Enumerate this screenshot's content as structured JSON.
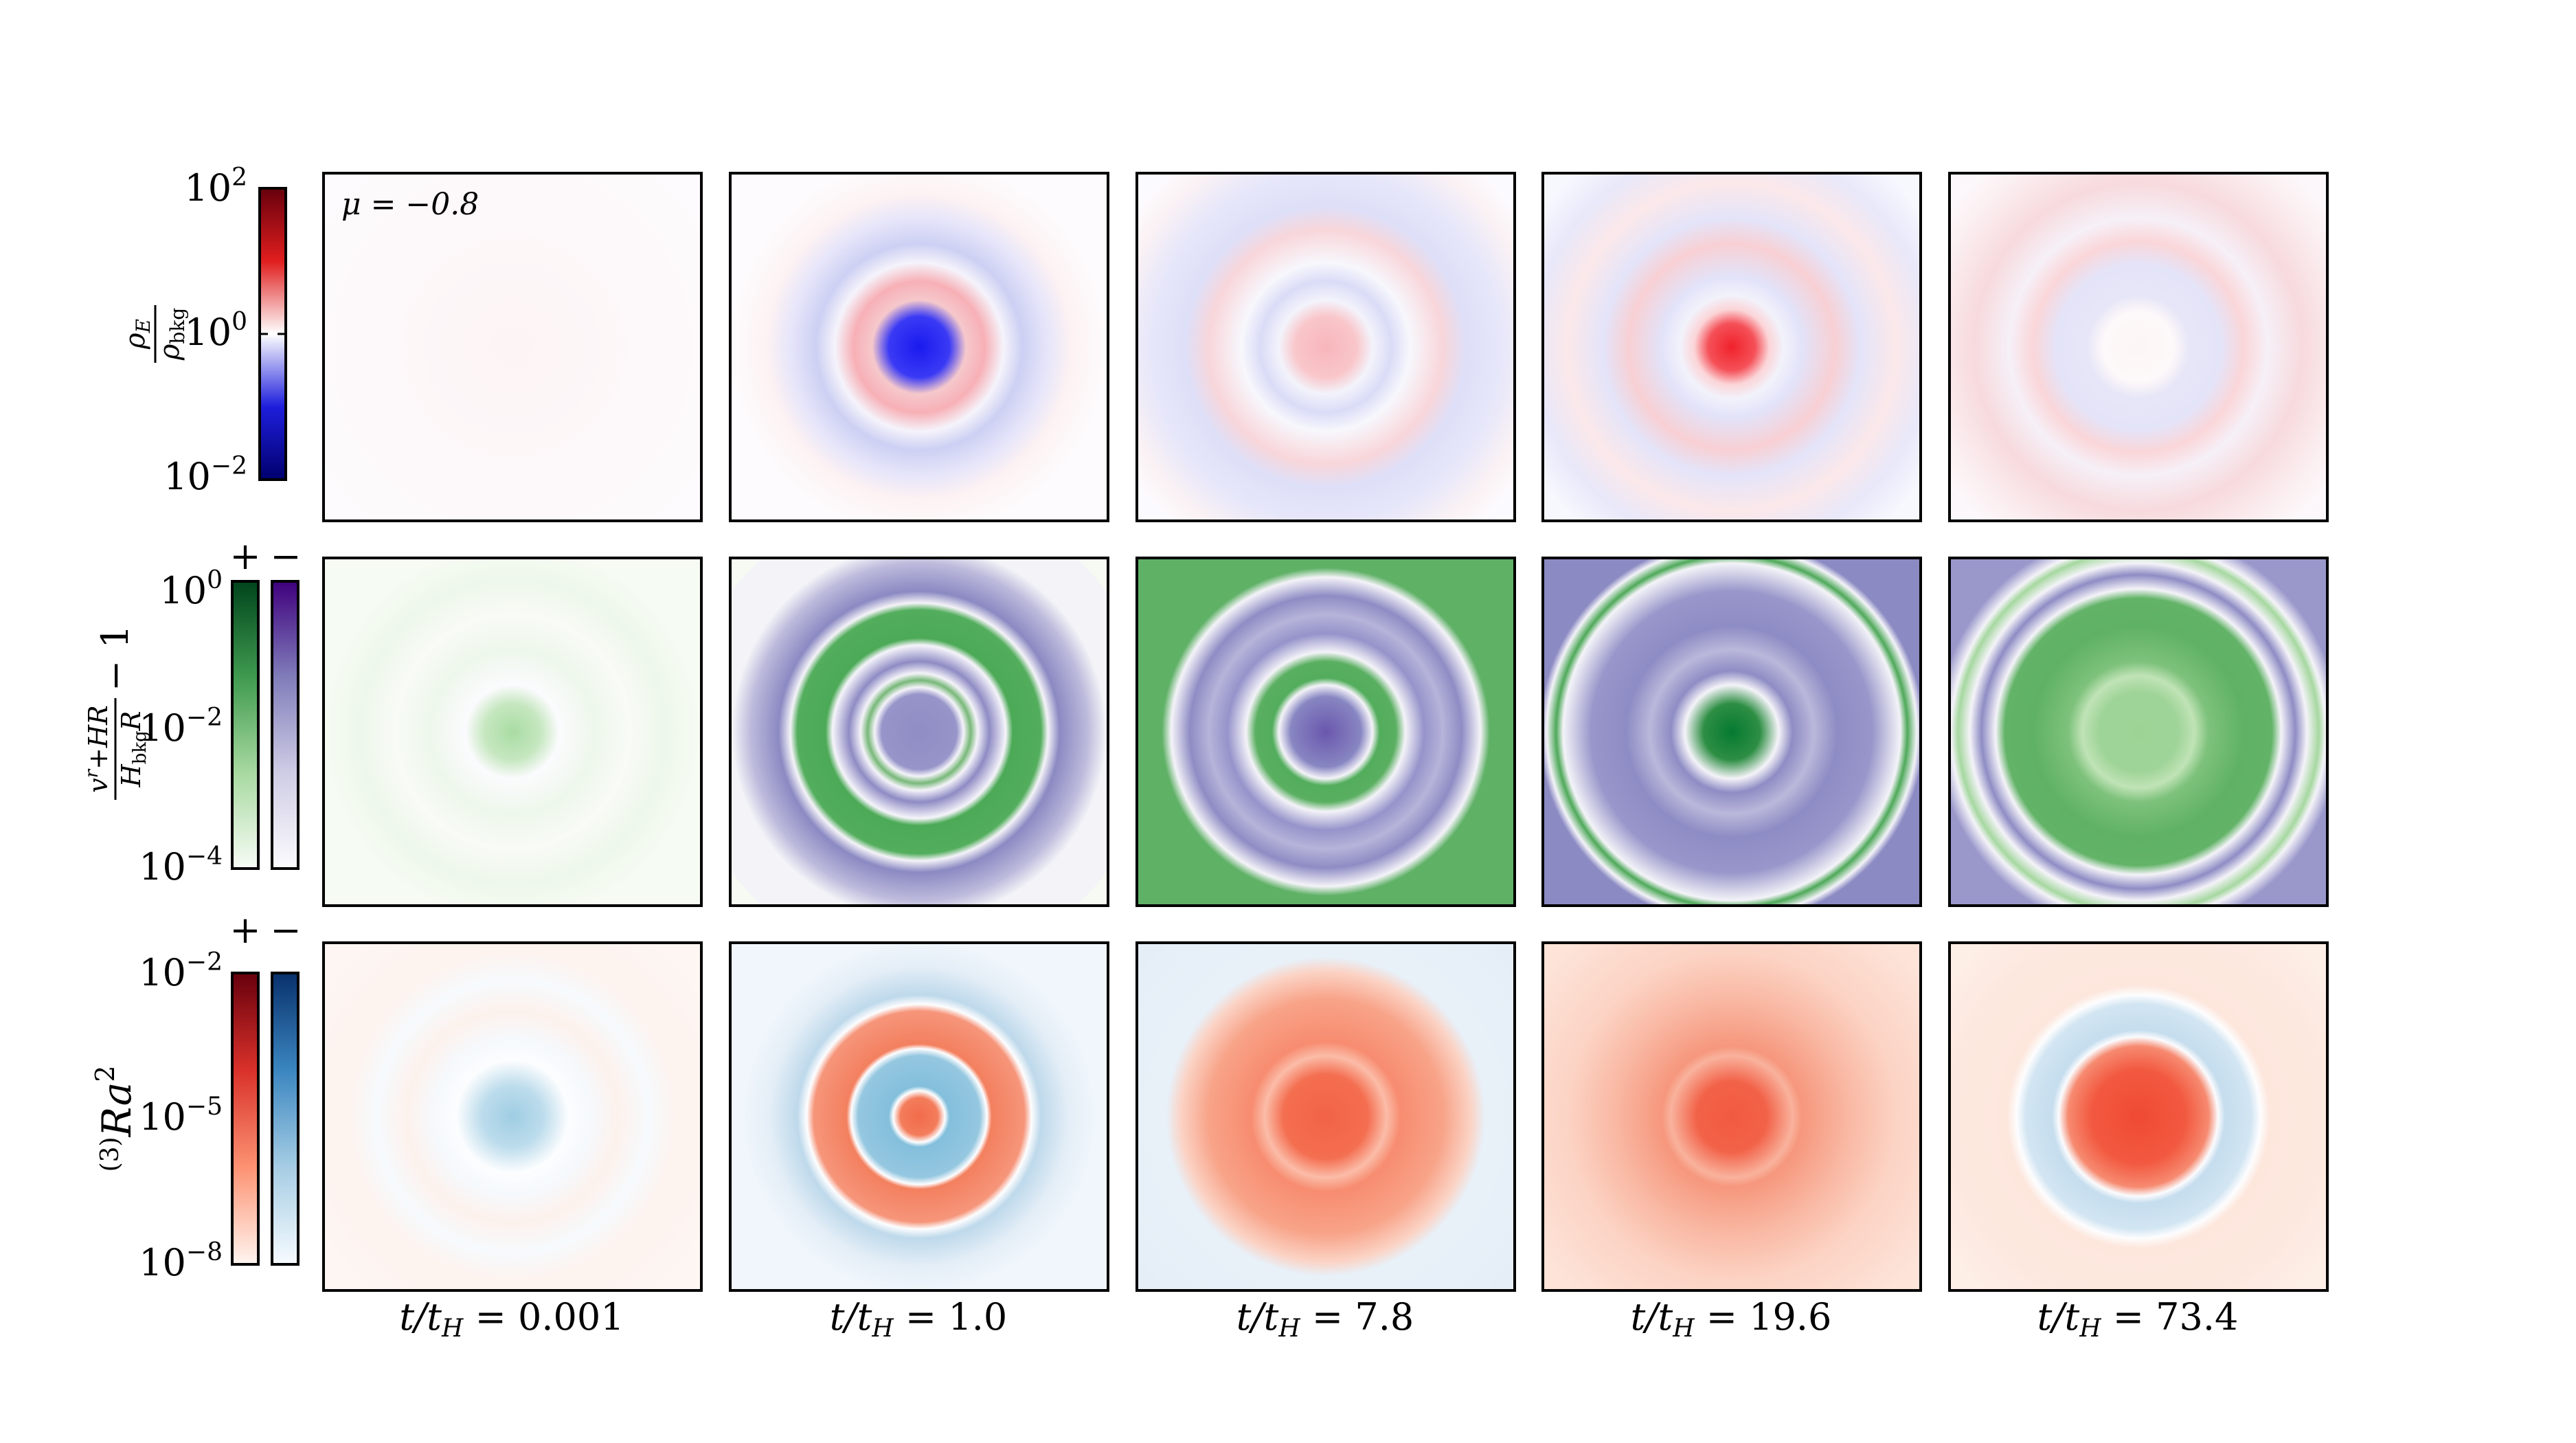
{
  "annotation": "μ = −0.8",
  "row_labels": {
    "density": {
      "numerator": "ρ",
      "numerator_sub": "E",
      "denominator": "ρ",
      "denominator_sub": "bkg"
    },
    "velocity": {
      "numerator": "v",
      "numerator_sup": "r",
      "numerator_rest": "+HR",
      "denominator": "H",
      "denominator_sub": "bkg",
      "denominator_rest": "R",
      "suffix": "− 1"
    },
    "curvature": {
      "prefix": "(3)",
      "main": "Ra",
      "sup": "2"
    }
  },
  "colorbars": {
    "density": {
      "ticks": [
        {
          "base": "10",
          "exp": "2"
        },
        {
          "base": "10",
          "exp": "0"
        },
        {
          "base": "10",
          "exp": "−2"
        }
      ],
      "colors": [
        "#67000d",
        "#e01e1e",
        "#ffffff",
        "#1e1edc",
        "#00006e"
      ]
    },
    "velocity": {
      "plus": "+",
      "minus": "−",
      "ticks": [
        {
          "base": "10",
          "exp": "0"
        },
        {
          "base": "10",
          "exp": "−2"
        },
        {
          "base": "10",
          "exp": "−4"
        }
      ],
      "colors_pos": [
        "#00441b",
        "#3f9a4f",
        "#a8d9a0",
        "#f7fcf5"
      ],
      "colors_neg": [
        "#3f007d",
        "#807dba",
        "#cfcde5",
        "#fcfbfd"
      ]
    },
    "curvature": {
      "plus": "+",
      "minus": "−",
      "ticks": [
        {
          "base": "10",
          "exp": "−2"
        },
        {
          "base": "10",
          "exp": "−5"
        },
        {
          "base": "10",
          "exp": "−8"
        }
      ],
      "colors_pos": [
        "#67000d",
        "#d9312a",
        "#fc9272",
        "#fff5f0"
      ],
      "colors_neg": [
        "#08306b",
        "#3b86c0",
        "#a6cde4",
        "#f7fbff"
      ]
    }
  },
  "time_labels": [
    {
      "text": "t/t",
      "sub": "H",
      "value": " = 0.001"
    },
    {
      "text": "t/t",
      "sub": "H",
      "value": " = 1.0"
    },
    {
      "text": "t/t",
      "sub": "H",
      "value": " = 7.8"
    },
    {
      "text": "t/t",
      "sub": "H",
      "value": " = 19.6"
    },
    {
      "text": "t/t",
      "sub": "H",
      "value": " = 73.4"
    }
  ],
  "panels": [
    [
      {
        "bg": "#fdfbfd",
        "stops": [
          [
            0,
            "#fdf4f5"
          ],
          [
            1,
            "#fdfbfd"
          ]
        ]
      },
      {
        "bg": "#fdfbfd",
        "stops": [
          [
            0,
            "#1a1aef"
          ],
          [
            0.13,
            "#3a3af5"
          ],
          [
            0.2,
            "#f5c8cc"
          ],
          [
            0.28,
            "#f7b0b6"
          ],
          [
            0.36,
            "#f5f3fb"
          ],
          [
            0.44,
            "#cdd0f3"
          ],
          [
            0.55,
            "#e6e5fa"
          ],
          [
            0.65,
            "#fdf2f3"
          ],
          [
            0.8,
            "#fdfbfd"
          ]
        ]
      },
      {
        "bg": "#fbfbff",
        "stops": [
          [
            0,
            "#f7b6bb"
          ],
          [
            0.13,
            "#f9c6ca"
          ],
          [
            0.2,
            "#f3f3fb"
          ],
          [
            0.28,
            "#dadcf7"
          ],
          [
            0.36,
            "#f7f7fc"
          ],
          [
            0.5,
            "#f8d6da"
          ],
          [
            0.6,
            "#dedff8"
          ],
          [
            0.75,
            "#e7e7fa"
          ],
          [
            0.9,
            "#fbf2f4"
          ],
          [
            1,
            "#fcfbfe"
          ]
        ]
      },
      {
        "bg": "#f7f7fe",
        "stops": [
          [
            0,
            "#f0222b"
          ],
          [
            0.1,
            "#f55058"
          ],
          [
            0.16,
            "#fbd4d7"
          ],
          [
            0.22,
            "#f2f2fb"
          ],
          [
            0.3,
            "#e2e3f9"
          ],
          [
            0.44,
            "#f8d0d4"
          ],
          [
            0.55,
            "#e4e4f9"
          ],
          [
            0.7,
            "#fbe8ea"
          ],
          [
            0.85,
            "#e8e8fa"
          ],
          [
            1,
            "#f8f8fe"
          ]
        ]
      },
      {
        "bg": "#fbf7fb",
        "stops": [
          [
            0,
            "#fdf6f7"
          ],
          [
            0.15,
            "#fdf8f9"
          ],
          [
            0.22,
            "#e7e6f8"
          ],
          [
            0.35,
            "#e4e4f9"
          ],
          [
            0.45,
            "#fad6d9"
          ],
          [
            0.55,
            "#f6f0f7"
          ],
          [
            0.7,
            "#f7dadd"
          ],
          [
            0.88,
            "#fbeef0"
          ],
          [
            1,
            "#fcf8fb"
          ]
        ]
      }
    ],
    [
      {
        "bg": "#f6fbf3",
        "stops": [
          [
            0,
            "#a9dca3"
          ],
          [
            0.12,
            "#c6e7c0"
          ],
          [
            0.2,
            "#fbfbfd"
          ],
          [
            0.35,
            "#eef7ec"
          ],
          [
            0.5,
            "#f8fbf6"
          ],
          [
            0.65,
            "#eef7eb"
          ],
          [
            0.8,
            "#f6fbf3"
          ]
        ]
      },
      {
        "bg": "#f6faf3",
        "stops": [
          [
            0,
            "#8f8dc4"
          ],
          [
            0.16,
            "#9694c8"
          ],
          [
            0.19,
            "#f4f3f9"
          ],
          [
            0.22,
            "#78b879"
          ],
          [
            0.25,
            "#f4f3f9"
          ],
          [
            0.3,
            "#8e8bc4"
          ],
          [
            0.37,
            "#f5f4fa"
          ],
          [
            0.4,
            "#4caa57"
          ],
          [
            0.52,
            "#52ad5c"
          ],
          [
            0.55,
            "#f4f3f8"
          ],
          [
            0.6,
            "#8b89c2"
          ],
          [
            0.72,
            "#bdbbdc"
          ],
          [
            0.8,
            "#f4f4f8"
          ]
        ]
      },
      {
        "bg": "#5fb166",
        "stops": [
          [
            0,
            "#6a57ad"
          ],
          [
            0.15,
            "#8886c2"
          ],
          [
            0.2,
            "#f4f3f8"
          ],
          [
            0.23,
            "#52ad5c"
          ],
          [
            0.3,
            "#5aaf61"
          ],
          [
            0.34,
            "#f4f3f8"
          ],
          [
            0.42,
            "#9593ca"
          ],
          [
            0.5,
            "#b6b4d9"
          ],
          [
            0.58,
            "#8e8cc4"
          ],
          [
            0.66,
            "#f4f3f8"
          ],
          [
            0.7,
            "#5fb166"
          ],
          [
            1,
            "#5fb166"
          ]
        ]
      },
      {
        "bg": "#8c8ac3",
        "stops": [
          [
            0,
            "#067a32"
          ],
          [
            0.12,
            "#2d8e43"
          ],
          [
            0.2,
            "#f4f3f8"
          ],
          [
            0.26,
            "#8e8cc4"
          ],
          [
            0.35,
            "#bab8da"
          ],
          [
            0.45,
            "#8e8cc4"
          ],
          [
            0.6,
            "#9896ca"
          ],
          [
            0.72,
            "#f3f3f8"
          ],
          [
            0.75,
            "#4ea959"
          ],
          [
            0.79,
            "#f3f3f8"
          ],
          [
            0.82,
            "#8c8ac3"
          ],
          [
            1,
            "#8c8ac3"
          ]
        ]
      },
      {
        "bg": "#9a98cb",
        "stops": [
          [
            0,
            "#9dd496"
          ],
          [
            0.17,
            "#9fd498"
          ],
          [
            0.24,
            "#c0e3b6"
          ],
          [
            0.3,
            "#7ec27c"
          ],
          [
            0.45,
            "#5fb166"
          ],
          [
            0.57,
            "#62b367"
          ],
          [
            0.61,
            "#f4f3f8"
          ],
          [
            0.67,
            "#8e8cc4"
          ],
          [
            0.72,
            "#f4f3f8"
          ],
          [
            0.77,
            "#a6d8a0"
          ],
          [
            0.8,
            "#f4f3f8"
          ],
          [
            0.86,
            "#9a98cb"
          ],
          [
            1,
            "#9a98cb"
          ]
        ]
      }
    ],
    [
      {
        "bg": "#fdf6f3",
        "stops": [
          [
            0,
            "#9fcde3"
          ],
          [
            0.13,
            "#bcdcec"
          ],
          [
            0.24,
            "#fcfdfe"
          ],
          [
            0.33,
            "#f5f9fd"
          ],
          [
            0.45,
            "#fdf1ec"
          ],
          [
            0.58,
            "#f6fafd"
          ],
          [
            0.7,
            "#fdf3ef"
          ],
          [
            1,
            "#fdf6f3"
          ]
        ]
      },
      {
        "bg": "#f0f6fb",
        "stops": [
          [
            0,
            "#f26b4a"
          ],
          [
            0.08,
            "#f37d5c"
          ],
          [
            0.11,
            "#fdfdfe"
          ],
          [
            0.13,
            "#83bfdc"
          ],
          [
            0.26,
            "#95c7e0"
          ],
          [
            0.29,
            "#fdfdfe"
          ],
          [
            0.31,
            "#f3805f"
          ],
          [
            0.45,
            "#f6957a"
          ],
          [
            0.48,
            "#fdfdfe"
          ],
          [
            0.52,
            "#bed9eb"
          ],
          [
            0.64,
            "#e4eef7"
          ],
          [
            0.75,
            "#f0f6fb"
          ]
        ]
      },
      {
        "bg": "#e5eef7",
        "stops": [
          [
            0,
            "#f26346"
          ],
          [
            0.18,
            "#f46e50"
          ],
          [
            0.26,
            "#fbbca8"
          ],
          [
            0.32,
            "#f78c70"
          ],
          [
            0.5,
            "#f8a388"
          ],
          [
            0.62,
            "#fbd3c5"
          ],
          [
            0.68,
            "#e8f0f8"
          ],
          [
            1,
            "#e6eff7"
          ]
        ]
      },
      {
        "bg": "#fde3d8",
        "stops": [
          [
            0,
            "#f15a40"
          ],
          [
            0.15,
            "#f26248"
          ],
          [
            0.26,
            "#f9b29d"
          ],
          [
            0.3,
            "#f6977d"
          ],
          [
            0.5,
            "#f9b8a3"
          ],
          [
            0.7,
            "#fcd3c4"
          ],
          [
            1,
            "#fde3d8"
          ]
        ]
      },
      {
        "bg": "#fdeee6",
        "stops": [
          [
            0,
            "#f04a33"
          ],
          [
            0.2,
            "#f25940"
          ],
          [
            0.3,
            "#f68a70"
          ],
          [
            0.34,
            "#fbfbfd"
          ],
          [
            0.37,
            "#c5ddee"
          ],
          [
            0.48,
            "#d2e5f2"
          ],
          [
            0.52,
            "#fdfdfe"
          ],
          [
            0.56,
            "#fde7dd"
          ],
          [
            0.8,
            "#fde8df"
          ],
          [
            1,
            "#fdeee6"
          ]
        ]
      }
    ]
  ]
}
